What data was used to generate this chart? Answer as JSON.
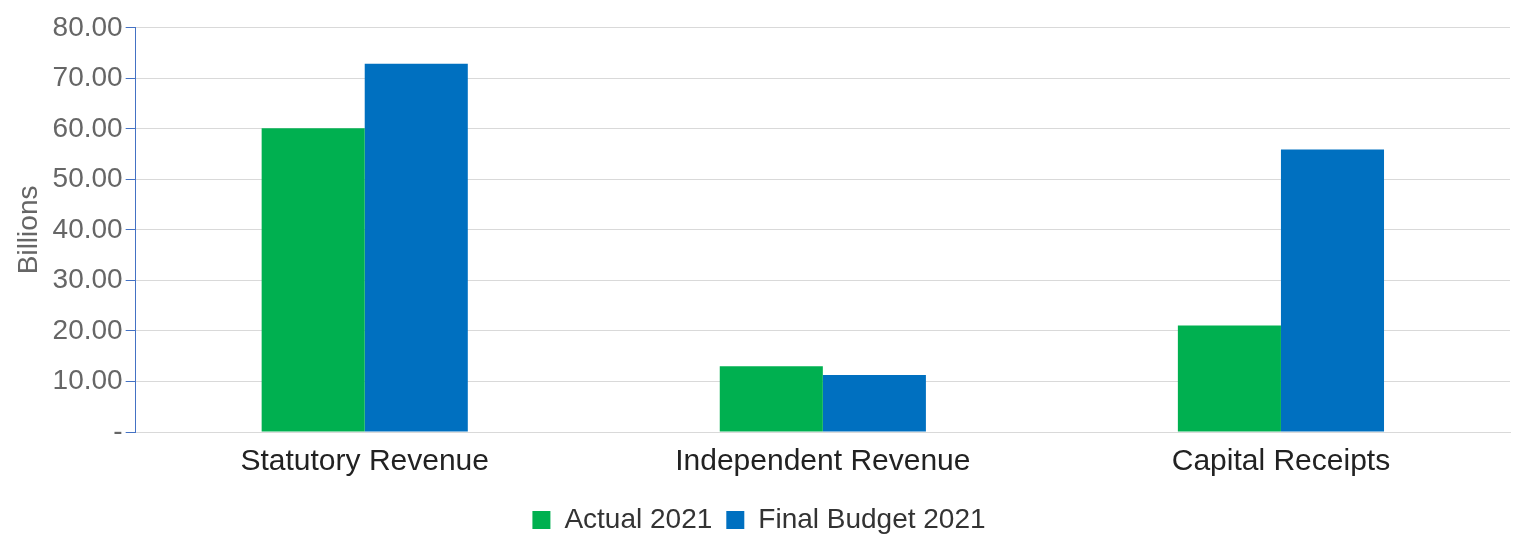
{
  "chart_data": {
    "type": "bar",
    "ylabel": "Billions",
    "categories": [
      "Statutory Revenue",
      "Independent Revenue",
      "Capital Receipts"
    ],
    "series": [
      {
        "name": "Actual 2021",
        "color": "#00b050",
        "values": [
          60.1,
          13.0,
          21.1
        ]
      },
      {
        "name": "Final Budget 2021",
        "color": "#0070c0",
        "values": [
          72.9,
          11.3,
          55.9
        ]
      }
    ],
    "ylim": [
      0,
      80
    ],
    "yticks": [
      {
        "value": 0,
        "label": "-"
      },
      {
        "value": 10,
        "label": "10.00"
      },
      {
        "value": 20,
        "label": "20.00"
      },
      {
        "value": 30,
        "label": "30.00"
      },
      {
        "value": 40,
        "label": "40.00"
      },
      {
        "value": 50,
        "label": "50.00"
      },
      {
        "value": 60,
        "label": "60.00"
      },
      {
        "value": 70,
        "label": "70.00"
      },
      {
        "value": 80,
        "label": "80.00"
      }
    ],
    "grid": "y",
    "legend": "bottom"
  }
}
